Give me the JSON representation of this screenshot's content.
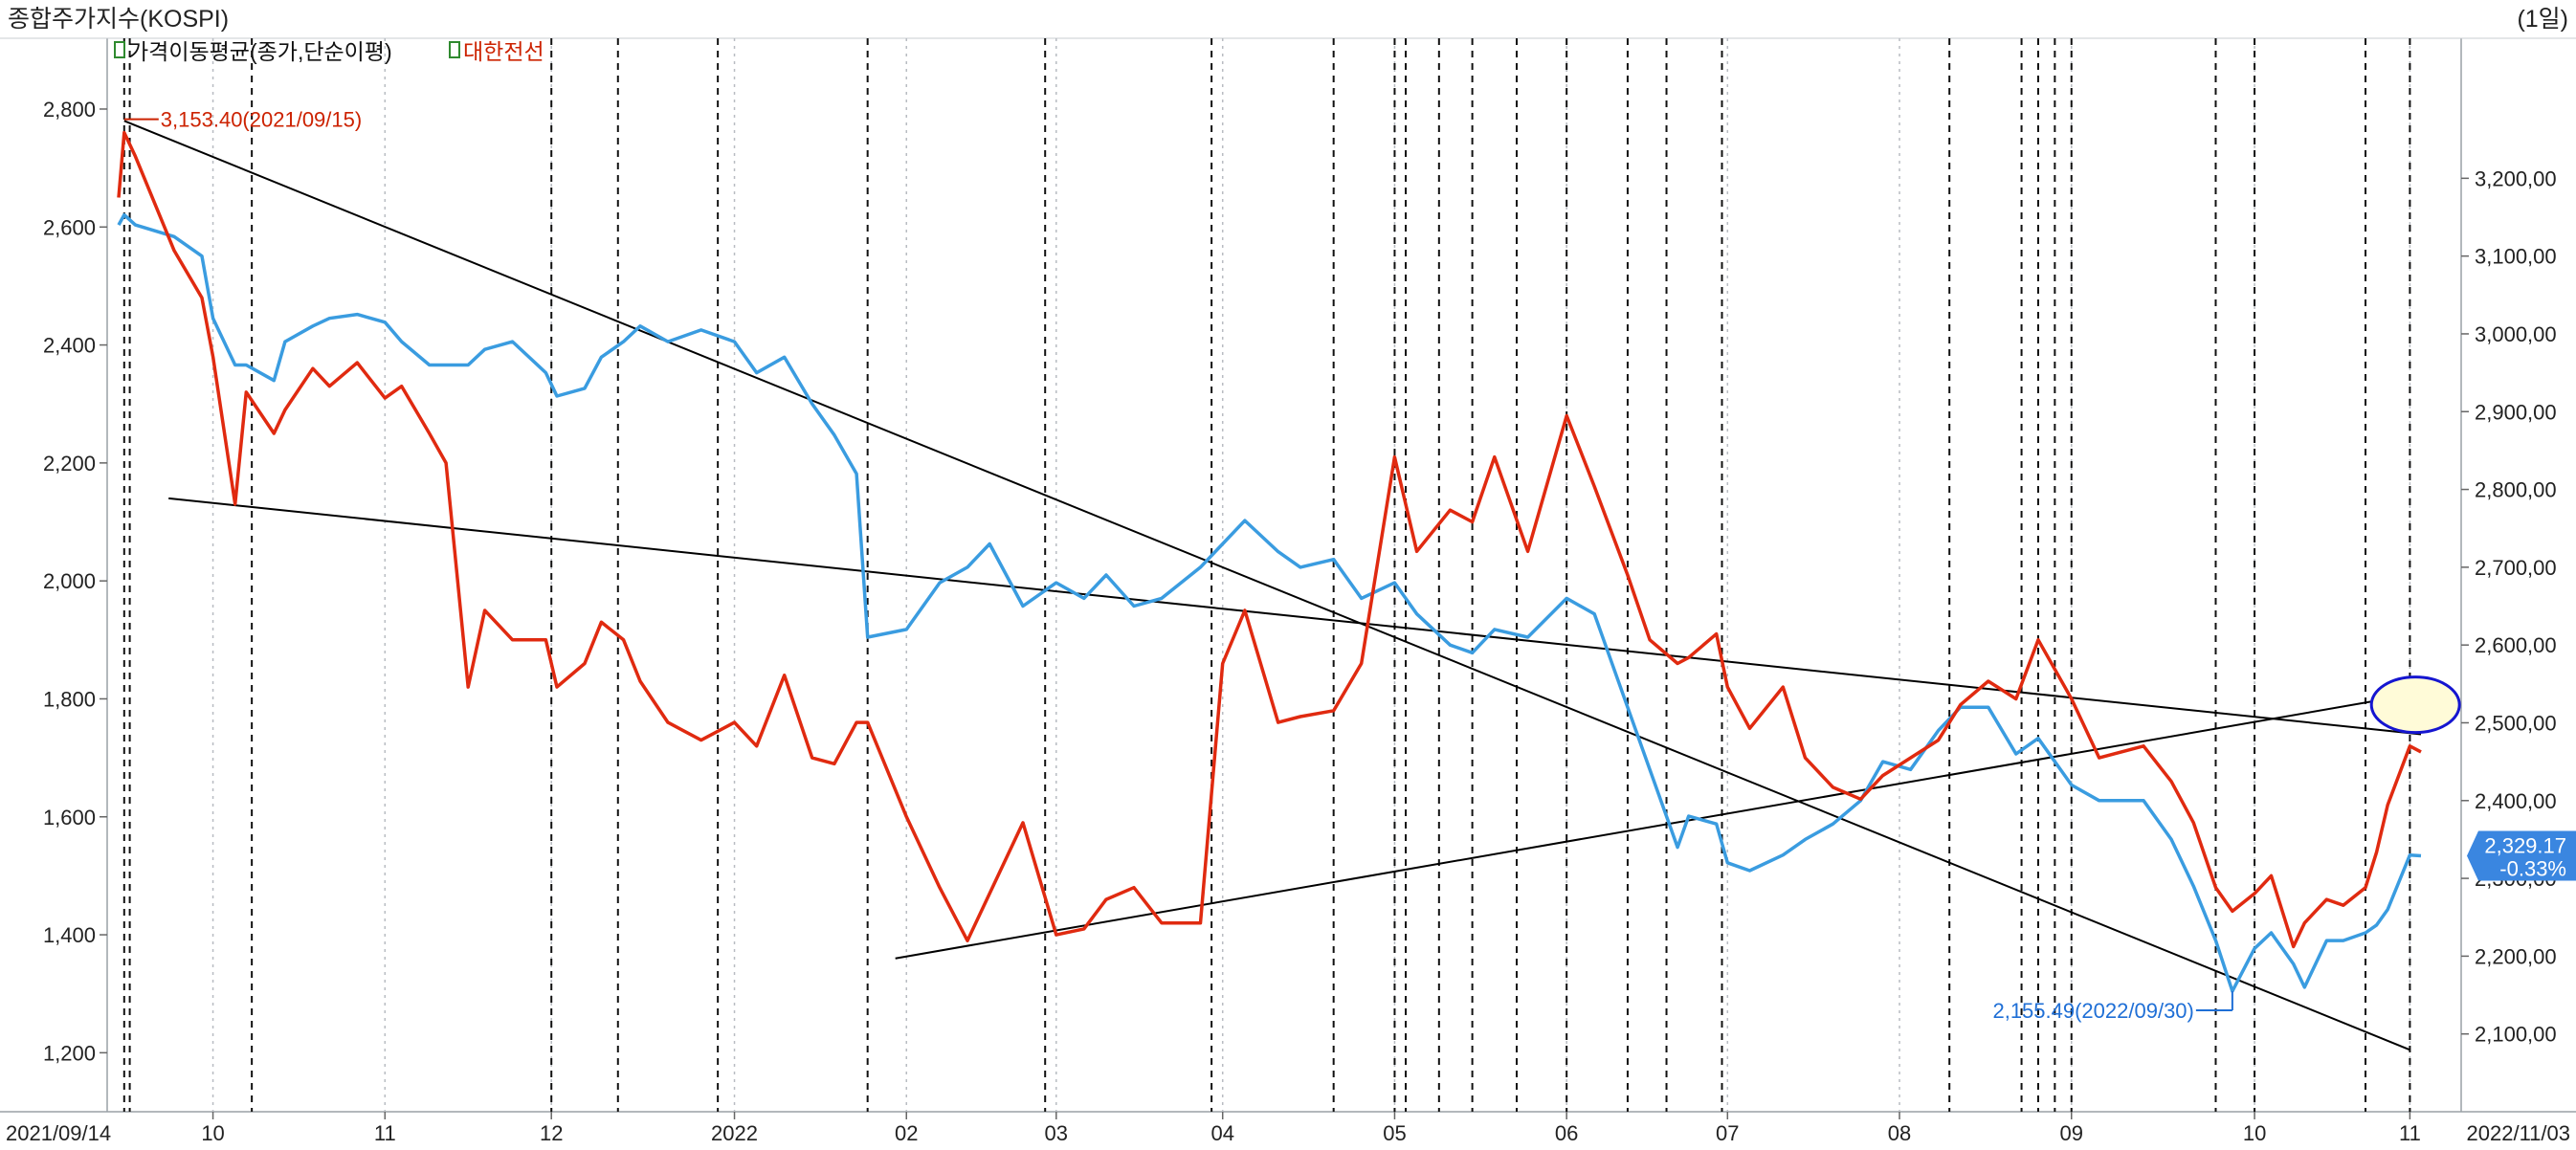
{
  "header": {
    "title": "종합주가지수(KOSPI)",
    "period": "(1일)"
  },
  "legend": {
    "item1": "가격이동평균(종가,단순이평)",
    "item2": "대한전선",
    "item1_color": "#000000",
    "item2_color": "#cc2200"
  },
  "annotations": {
    "high_label": "3,153.40(2021/09/15)",
    "low_label": "2,155.49(2022/09/30)",
    "last_price": "2,329.17",
    "last_change": "-0.33%",
    "high_color": "#cc2200",
    "low_color": "#1f6fd6",
    "badge_color": "#3a86e0",
    "ellipse_color": "#1515d0",
    "ellipse_fill": "#fffbd8"
  },
  "chart_data": {
    "type": "line",
    "x_start": "2021/09/14",
    "x_end": "2022/11/03",
    "x_tick_labels": [
      "10",
      "11",
      "12",
      "2022",
      "02",
      "03",
      "04",
      "05",
      "06",
      "07",
      "08",
      "09",
      "10",
      "11"
    ],
    "x_tick_dates": [
      "2021-10-01",
      "2021-11-01",
      "2021-12-01",
      "2022-01-03",
      "2022-02-03",
      "2022-03-02",
      "2022-04-01",
      "2022-05-02",
      "2022-06-02",
      "2022-07-01",
      "2022-08-01",
      "2022-09-01",
      "2022-10-04",
      "2022-11-01"
    ],
    "left_axis": {
      "ticks": [
        1200,
        1400,
        1600,
        1800,
        2000,
        2200,
        2400,
        2600,
        2800
      ],
      "labels": [
        "1,200",
        "1,400",
        "1,600",
        "1,800",
        "2,000",
        "2,200",
        "2,400",
        "2,600",
        "2,800"
      ],
      "range": [
        1100,
        2920
      ]
    },
    "right_axis": {
      "ticks": [
        2100,
        2200,
        2300,
        2400,
        2500,
        2600,
        2700,
        2800,
        2900,
        3000,
        3100,
        3200
      ],
      "labels": [
        "2,100,00",
        "2,200,00",
        "2,300,00",
        "2,400,00",
        "2,500,00",
        "2,600,00",
        "2,700,00",
        "2,800,00",
        "2,900,00",
        "3,000,00",
        "3,100,00",
        "3,200,00"
      ],
      "range": [
        2000,
        3380
      ]
    },
    "series": [
      {
        "name": "종합주가지수(KOSPI)",
        "axis": "right",
        "color": "#3a9ce0",
        "points": [
          [
            "2021-09-14",
            3140
          ],
          [
            "2021-09-15",
            3153
          ],
          [
            "2021-09-17",
            3140
          ],
          [
            "2021-09-24",
            3125
          ],
          [
            "2021-09-29",
            3100
          ],
          [
            "2021-10-01",
            3020
          ],
          [
            "2021-10-05",
            2960
          ],
          [
            "2021-10-07",
            2960
          ],
          [
            "2021-10-12",
            2940
          ],
          [
            "2021-10-14",
            2990
          ],
          [
            "2021-10-19",
            3010
          ],
          [
            "2021-10-22",
            3020
          ],
          [
            "2021-10-27",
            3025
          ],
          [
            "2021-11-01",
            3015
          ],
          [
            "2021-11-04",
            2990
          ],
          [
            "2021-11-09",
            2960
          ],
          [
            "2021-11-12",
            2960
          ],
          [
            "2021-11-16",
            2960
          ],
          [
            "2021-11-19",
            2980
          ],
          [
            "2021-11-24",
            2990
          ],
          [
            "2021-11-30",
            2950
          ],
          [
            "2021-12-02",
            2920
          ],
          [
            "2021-12-07",
            2930
          ],
          [
            "2021-12-10",
            2970
          ],
          [
            "2021-12-14",
            2990
          ],
          [
            "2021-12-17",
            3010
          ],
          [
            "2021-12-22",
            2990
          ],
          [
            "2021-12-28",
            3005
          ],
          [
            "2022-01-03",
            2990
          ],
          [
            "2022-01-07",
            2950
          ],
          [
            "2022-01-12",
            2970
          ],
          [
            "2022-01-17",
            2910
          ],
          [
            "2022-01-21",
            2870
          ],
          [
            "2022-01-25",
            2820
          ],
          [
            "2022-01-27",
            2610
          ],
          [
            "2022-02-03",
            2620
          ],
          [
            "2022-02-09",
            2680
          ],
          [
            "2022-02-14",
            2700
          ],
          [
            "2022-02-18",
            2730
          ],
          [
            "2022-02-24",
            2650
          ],
          [
            "2022-03-02",
            2680
          ],
          [
            "2022-03-07",
            2660
          ],
          [
            "2022-03-11",
            2690
          ],
          [
            "2022-03-16",
            2650
          ],
          [
            "2022-03-21",
            2660
          ],
          [
            "2022-03-28",
            2700
          ],
          [
            "2022-04-01",
            2730
          ],
          [
            "2022-04-05",
            2760
          ],
          [
            "2022-04-11",
            2720
          ],
          [
            "2022-04-15",
            2700
          ],
          [
            "2022-04-21",
            2710
          ],
          [
            "2022-04-26",
            2660
          ],
          [
            "2022-05-02",
            2680
          ],
          [
            "2022-05-06",
            2640
          ],
          [
            "2022-05-12",
            2600
          ],
          [
            "2022-05-16",
            2590
          ],
          [
            "2022-05-20",
            2620
          ],
          [
            "2022-05-26",
            2610
          ],
          [
            "2022-06-02",
            2660
          ],
          [
            "2022-06-07",
            2640
          ],
          [
            "2022-06-13",
            2520
          ],
          [
            "2022-06-17",
            2440
          ],
          [
            "2022-06-22",
            2340
          ],
          [
            "2022-06-24",
            2380
          ],
          [
            "2022-06-29",
            2370
          ],
          [
            "2022-07-01",
            2320
          ],
          [
            "2022-07-05",
            2310
          ],
          [
            "2022-07-11",
            2330
          ],
          [
            "2022-07-15",
            2350
          ],
          [
            "2022-07-20",
            2370
          ],
          [
            "2022-07-25",
            2400
          ],
          [
            "2022-07-29",
            2450
          ],
          [
            "2022-08-03",
            2440
          ],
          [
            "2022-08-08",
            2490
          ],
          [
            "2022-08-12",
            2520
          ],
          [
            "2022-08-17",
            2520
          ],
          [
            "2022-08-22",
            2460
          ],
          [
            "2022-08-26",
            2480
          ],
          [
            "2022-09-01",
            2420
          ],
          [
            "2022-09-06",
            2400
          ],
          [
            "2022-09-14",
            2400
          ],
          [
            "2022-09-19",
            2350
          ],
          [
            "2022-09-23",
            2290
          ],
          [
            "2022-09-27",
            2220
          ],
          [
            "2022-09-30",
            2155
          ],
          [
            "2022-10-04",
            2210
          ],
          [
            "2022-10-07",
            2230
          ],
          [
            "2022-10-11",
            2190
          ],
          [
            "2022-10-13",
            2160
          ],
          [
            "2022-10-17",
            2220
          ],
          [
            "2022-10-20",
            2220
          ],
          [
            "2022-10-24",
            2230
          ],
          [
            "2022-10-26",
            2240
          ],
          [
            "2022-10-28",
            2260
          ],
          [
            "2022-11-01",
            2330
          ],
          [
            "2022-11-03",
            2329
          ]
        ]
      },
      {
        "name": "대한전선",
        "axis": "left",
        "color": "#e02a10",
        "points": [
          [
            "2021-09-14",
            2650
          ],
          [
            "2021-09-15",
            2760
          ],
          [
            "2021-09-17",
            2720
          ],
          [
            "2021-09-24",
            2560
          ],
          [
            "2021-09-29",
            2480
          ],
          [
            "2021-10-01",
            2380
          ],
          [
            "2021-10-05",
            2130
          ],
          [
            "2021-10-07",
            2320
          ],
          [
            "2021-10-12",
            2250
          ],
          [
            "2021-10-14",
            2290
          ],
          [
            "2021-10-19",
            2360
          ],
          [
            "2021-10-22",
            2330
          ],
          [
            "2021-10-27",
            2370
          ],
          [
            "2021-11-01",
            2310
          ],
          [
            "2021-11-04",
            2330
          ],
          [
            "2021-11-09",
            2250
          ],
          [
            "2021-11-12",
            2200
          ],
          [
            "2021-11-16",
            1820
          ],
          [
            "2021-11-19",
            1950
          ],
          [
            "2021-11-24",
            1900
          ],
          [
            "2021-11-30",
            1900
          ],
          [
            "2021-12-02",
            1820
          ],
          [
            "2021-12-07",
            1860
          ],
          [
            "2021-12-10",
            1930
          ],
          [
            "2021-12-14",
            1900
          ],
          [
            "2021-12-17",
            1830
          ],
          [
            "2021-12-22",
            1760
          ],
          [
            "2021-12-28",
            1730
          ],
          [
            "2022-01-03",
            1760
          ],
          [
            "2022-01-07",
            1720
          ],
          [
            "2022-01-12",
            1840
          ],
          [
            "2022-01-17",
            1700
          ],
          [
            "2022-01-21",
            1690
          ],
          [
            "2022-01-25",
            1760
          ],
          [
            "2022-01-27",
            1760
          ],
          [
            "2022-02-03",
            1600
          ],
          [
            "2022-02-09",
            1480
          ],
          [
            "2022-02-14",
            1390
          ],
          [
            "2022-02-18",
            1470
          ],
          [
            "2022-02-24",
            1590
          ],
          [
            "2022-03-02",
            1400
          ],
          [
            "2022-03-07",
            1410
          ],
          [
            "2022-03-11",
            1460
          ],
          [
            "2022-03-16",
            1480
          ],
          [
            "2022-03-21",
            1420
          ],
          [
            "2022-03-28",
            1420
          ],
          [
            "2022-04-01",
            1860
          ],
          [
            "2022-04-05",
            1950
          ],
          [
            "2022-04-11",
            1760
          ],
          [
            "2022-04-15",
            1770
          ],
          [
            "2022-04-21",
            1780
          ],
          [
            "2022-04-26",
            1860
          ],
          [
            "2022-05-02",
            2210
          ],
          [
            "2022-05-06",
            2050
          ],
          [
            "2022-05-12",
            2120
          ],
          [
            "2022-05-16",
            2100
          ],
          [
            "2022-05-20",
            2210
          ],
          [
            "2022-05-26",
            2050
          ],
          [
            "2022-06-02",
            2280
          ],
          [
            "2022-06-07",
            2160
          ],
          [
            "2022-06-13",
            2010
          ],
          [
            "2022-06-17",
            1900
          ],
          [
            "2022-06-22",
            1860
          ],
          [
            "2022-06-24",
            1870
          ],
          [
            "2022-06-29",
            1910
          ],
          [
            "2022-07-01",
            1820
          ],
          [
            "2022-07-05",
            1750
          ],
          [
            "2022-07-11",
            1820
          ],
          [
            "2022-07-15",
            1700
          ],
          [
            "2022-07-20",
            1650
          ],
          [
            "2022-07-25",
            1630
          ],
          [
            "2022-07-29",
            1670
          ],
          [
            "2022-08-03",
            1700
          ],
          [
            "2022-08-08",
            1730
          ],
          [
            "2022-08-12",
            1790
          ],
          [
            "2022-08-17",
            1830
          ],
          [
            "2022-08-22",
            1800
          ],
          [
            "2022-08-26",
            1900
          ],
          [
            "2022-09-01",
            1800
          ],
          [
            "2022-09-06",
            1700
          ],
          [
            "2022-09-14",
            1720
          ],
          [
            "2022-09-19",
            1660
          ],
          [
            "2022-09-23",
            1590
          ],
          [
            "2022-09-27",
            1480
          ],
          [
            "2022-09-30",
            1440
          ],
          [
            "2022-10-04",
            1470
          ],
          [
            "2022-10-07",
            1500
          ],
          [
            "2022-10-11",
            1380
          ],
          [
            "2022-10-13",
            1420
          ],
          [
            "2022-10-17",
            1460
          ],
          [
            "2022-10-20",
            1450
          ],
          [
            "2022-10-24",
            1480
          ],
          [
            "2022-10-26",
            1540
          ],
          [
            "2022-10-28",
            1620
          ],
          [
            "2022-11-01",
            1720
          ],
          [
            "2022-11-03",
            1710
          ]
        ]
      }
    ],
    "trend_lines": [
      {
        "axis": "left",
        "from": [
          "2021-09-15",
          2780
        ],
        "to": [
          "2022-11-01",
          1205
        ]
      },
      {
        "axis": "left",
        "from": [
          "2021-09-23",
          2140
        ],
        "to": [
          "2022-11-03",
          1740
        ]
      },
      {
        "axis": "left",
        "from": [
          "2022-02-01",
          1360
        ],
        "to": [
          "2022-11-03",
          1810
        ]
      }
    ],
    "event_dates": [
      "2021-09-15",
      "2021-09-16",
      "2021-10-08",
      "2021-12-01",
      "2021-12-13",
      "2021-12-31",
      "2022-01-27",
      "2022-02-28",
      "2022-03-30",
      "2022-04-21",
      "2022-05-02",
      "2022-05-04",
      "2022-05-10",
      "2022-05-16",
      "2022-05-24",
      "2022-06-02",
      "2022-06-13",
      "2022-06-20",
      "2022-06-30",
      "2022-08-10",
      "2022-08-23",
      "2022-08-26",
      "2022-08-29",
      "2022-09-01",
      "2022-09-27",
      "2022-10-04",
      "2022-10-24",
      "2022-11-01"
    ],
    "grid": "vertical-dotted",
    "legend_position": "top-left"
  }
}
